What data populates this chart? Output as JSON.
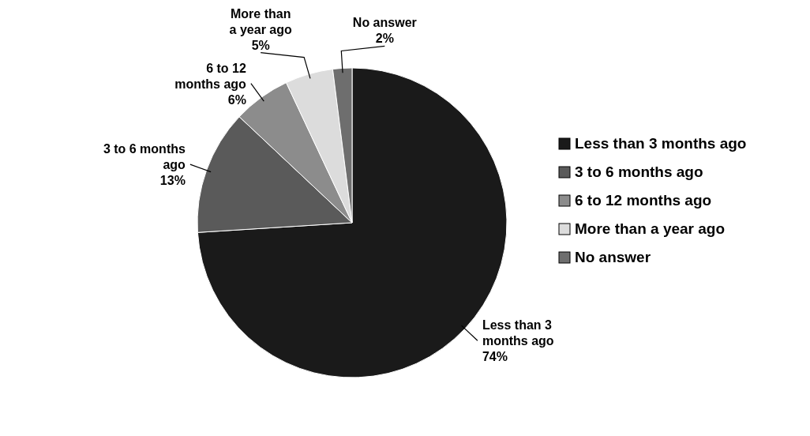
{
  "chart_data": {
    "type": "pie",
    "categories": [
      "Less than 3 months ago",
      "3 to 6 months ago",
      "6 to 12 months ago",
      "More than a year ago",
      "No answer"
    ],
    "values": [
      74,
      13,
      6,
      5,
      2
    ],
    "colors": [
      "#1a1a1a",
      "#5a5a5a",
      "#8c8c8c",
      "#dcdcdc",
      "#6e6e6e"
    ],
    "value_labels": [
      "74%",
      "13%",
      "6%",
      "5%",
      "2%"
    ],
    "legend": "right"
  }
}
